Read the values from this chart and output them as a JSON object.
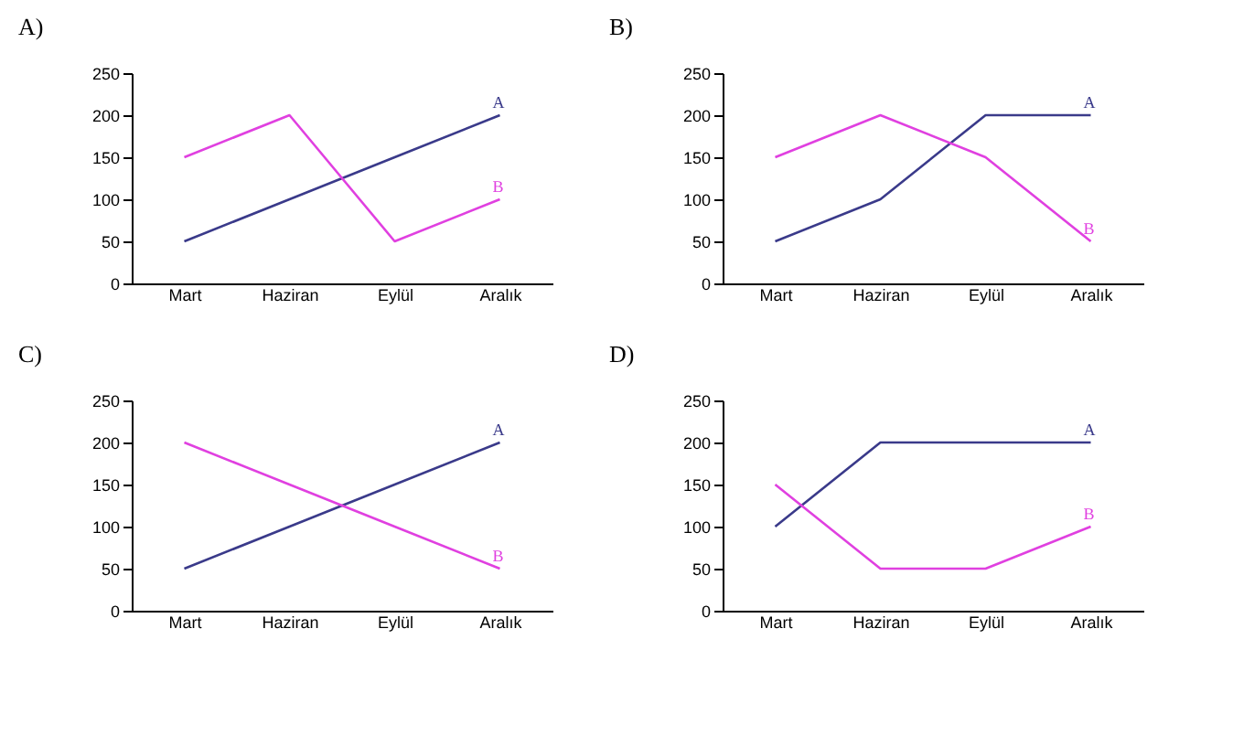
{
  "chart_data": [
    {
      "type": "line",
      "title": "A)",
      "categories": [
        "Mart",
        "Haziran",
        "Eylül",
        "Aralık"
      ],
      "ylim": [
        0,
        250
      ],
      "yticks": [
        0,
        50,
        100,
        150,
        200,
        250
      ],
      "grid": false,
      "series": [
        {
          "name": "A",
          "color": "#3a3a8a",
          "values": [
            50,
            100,
            150,
            200
          ]
        },
        {
          "name": "B",
          "color": "#e040e0",
          "values": [
            150,
            200,
            50,
            100
          ]
        }
      ]
    },
    {
      "type": "line",
      "title": "B)",
      "categories": [
        "Mart",
        "Haziran",
        "Eylül",
        "Aralık"
      ],
      "ylim": [
        0,
        250
      ],
      "yticks": [
        0,
        50,
        100,
        150,
        200,
        250
      ],
      "grid": false,
      "series": [
        {
          "name": "A",
          "color": "#3a3a8a",
          "values": [
            50,
            100,
            200,
            200
          ]
        },
        {
          "name": "B",
          "color": "#e040e0",
          "values": [
            150,
            200,
            150,
            50
          ]
        }
      ]
    },
    {
      "type": "line",
      "title": "C)",
      "categories": [
        "Mart",
        "Haziran",
        "Eylül",
        "Aralık"
      ],
      "ylim": [
        0,
        250
      ],
      "yticks": [
        0,
        50,
        100,
        150,
        200,
        250
      ],
      "grid": false,
      "series": [
        {
          "name": "A",
          "color": "#3a3a8a",
          "values": [
            50,
            100,
            150,
            200
          ]
        },
        {
          "name": "B",
          "color": "#e040e0",
          "values": [
            200,
            150,
            100,
            50
          ]
        }
      ]
    },
    {
      "type": "line",
      "title": "D)",
      "categories": [
        "Mart",
        "Haziran",
        "Eylül",
        "Aralık"
      ],
      "ylim": [
        0,
        250
      ],
      "yticks": [
        0,
        50,
        100,
        150,
        200,
        250
      ],
      "grid": false,
      "series": [
        {
          "name": "A",
          "color": "#3a3a8a",
          "values": [
            100,
            200,
            200,
            200
          ]
        },
        {
          "name": "B",
          "color": "#e040e0",
          "values": [
            150,
            50,
            50,
            100
          ]
        }
      ]
    }
  ]
}
